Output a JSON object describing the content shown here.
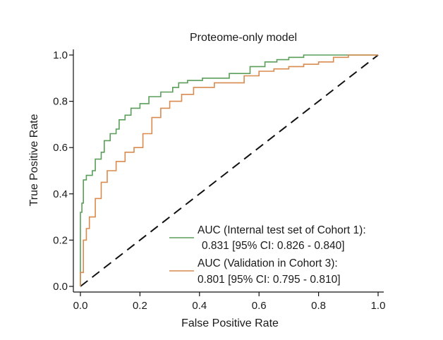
{
  "chart_data": {
    "type": "line",
    "title": "Proteome-only model",
    "xlabel": "False Positive Rate",
    "ylabel": "True Positive Rate",
    "xlim": [
      0.0,
      1.0
    ],
    "ylim": [
      0.0,
      1.0
    ],
    "xticks": [
      "0.0",
      "0.2",
      "0.4",
      "0.6",
      "0.8",
      "1.0"
    ],
    "yticks": [
      "0.0",
      "0.2",
      "0.4",
      "0.6",
      "0.8",
      "1.0"
    ],
    "grid": false,
    "legend_position": "bottom-right",
    "reference_line": {
      "x": [
        0.0,
        1.0
      ],
      "y": [
        0.0,
        1.0
      ],
      "style": "dashed",
      "color": "#111111"
    },
    "series": [
      {
        "legend_lines": [
          "AUC (Internal test set of Cohort 1):",
          "0.831 [95% CI: 0.826 - 0.840]"
        ],
        "color": "#5a9e5a",
        "x": [
          0.0,
          0.0,
          0.005,
          0.005,
          0.01,
          0.01,
          0.02,
          0.02,
          0.04,
          0.04,
          0.05,
          0.05,
          0.07,
          0.07,
          0.08,
          0.08,
          0.1,
          0.1,
          0.12,
          0.12,
          0.13,
          0.13,
          0.15,
          0.15,
          0.17,
          0.17,
          0.2,
          0.2,
          0.23,
          0.23,
          0.27,
          0.27,
          0.31,
          0.31,
          0.33,
          0.33,
          0.36,
          0.36,
          0.41,
          0.41,
          0.5,
          0.5,
          0.57,
          0.57,
          0.62,
          0.62,
          0.66,
          0.66,
          0.7,
          0.7,
          0.75,
          0.75,
          0.82,
          0.82,
          1.0
        ],
        "y": [
          0.0,
          0.32,
          0.32,
          0.36,
          0.36,
          0.46,
          0.46,
          0.48,
          0.48,
          0.5,
          0.5,
          0.55,
          0.55,
          0.58,
          0.58,
          0.63,
          0.63,
          0.66,
          0.66,
          0.68,
          0.68,
          0.72,
          0.72,
          0.74,
          0.74,
          0.77,
          0.77,
          0.79,
          0.79,
          0.82,
          0.82,
          0.84,
          0.84,
          0.86,
          0.86,
          0.88,
          0.88,
          0.89,
          0.89,
          0.9,
          0.9,
          0.92,
          0.92,
          0.95,
          0.95,
          0.97,
          0.97,
          0.98,
          0.98,
          0.99,
          0.99,
          1.0,
          1.0,
          1.0,
          1.0
        ]
      },
      {
        "legend_lines": [
          "AUC (Validation in Cohort 3):",
          "0.801 [95% CI: 0.795 - 0.810]"
        ],
        "color": "#d98a4e",
        "x": [
          0.0,
          0.0,
          0.01,
          0.01,
          0.02,
          0.02,
          0.03,
          0.03,
          0.05,
          0.05,
          0.07,
          0.07,
          0.09,
          0.09,
          0.12,
          0.12,
          0.15,
          0.15,
          0.18,
          0.18,
          0.21,
          0.21,
          0.24,
          0.24,
          0.27,
          0.27,
          0.3,
          0.3,
          0.34,
          0.34,
          0.38,
          0.38,
          0.45,
          0.45,
          0.55,
          0.55,
          0.6,
          0.6,
          0.65,
          0.65,
          0.7,
          0.7,
          0.75,
          0.75,
          0.8,
          0.8,
          0.85,
          0.85,
          0.9,
          0.9,
          1.0
        ],
        "y": [
          0.0,
          0.06,
          0.06,
          0.2,
          0.2,
          0.25,
          0.25,
          0.3,
          0.3,
          0.38,
          0.38,
          0.45,
          0.45,
          0.5,
          0.5,
          0.54,
          0.54,
          0.58,
          0.58,
          0.6,
          0.6,
          0.66,
          0.66,
          0.73,
          0.73,
          0.77,
          0.77,
          0.8,
          0.8,
          0.83,
          0.83,
          0.86,
          0.86,
          0.88,
          0.88,
          0.91,
          0.91,
          0.93,
          0.93,
          0.94,
          0.94,
          0.95,
          0.95,
          0.96,
          0.96,
          0.97,
          0.97,
          0.99,
          0.99,
          1.0,
          1.0
        ]
      }
    ]
  }
}
